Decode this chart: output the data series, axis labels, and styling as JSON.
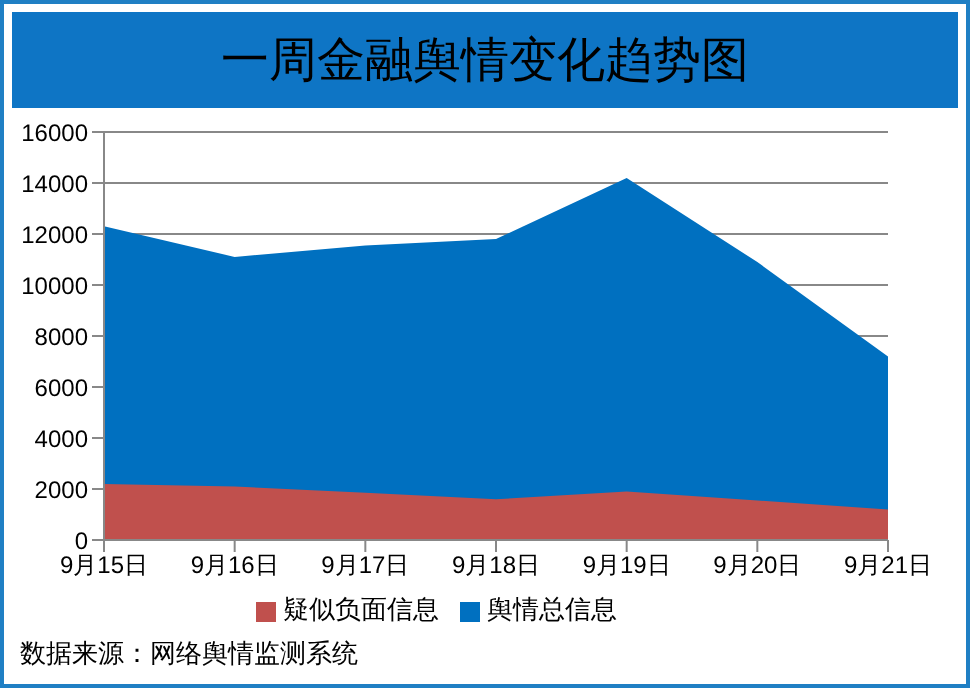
{
  "chart_data": {
    "type": "area",
    "title": "一周金融舆情变化趋势图",
    "categories": [
      "9月15日",
      "9月16日",
      "9月17日",
      "9月18日",
      "9月19日",
      "9月20日",
      "9月21日"
    ],
    "series": [
      {
        "name": "舆情总信息",
        "color": "#0070c0",
        "values": [
          12300,
          11100,
          11550,
          11800,
          14200,
          10900,
          7200
        ]
      },
      {
        "name": "疑似负面信息",
        "color": "#c0504d",
        "values": [
          2200,
          2100,
          1850,
          1600,
          1900,
          1550,
          1200
        ]
      }
    ],
    "ylim": [
      0,
      16000
    ],
    "yticks": [
      0,
      2000,
      4000,
      6000,
      8000,
      10000,
      12000,
      14000,
      16000
    ],
    "grid": "y",
    "legend": "bottom",
    "annotations": [
      "数据来源：网络舆情监测系统"
    ]
  }
}
